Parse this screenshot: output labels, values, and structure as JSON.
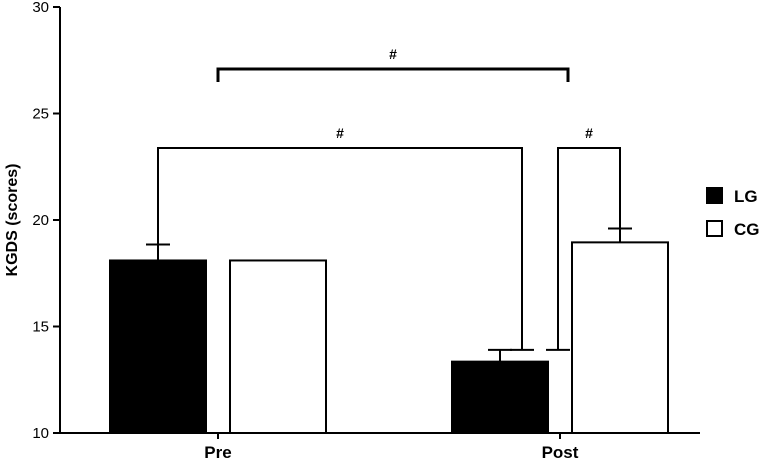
{
  "chart_data": {
    "type": "bar",
    "ylabel": "KGDS (scores)",
    "xlabel": "",
    "ylim": [
      10,
      30
    ],
    "yticks": [
      10,
      15,
      20,
      25,
      30
    ],
    "categories": [
      "Pre",
      "Post"
    ],
    "series": [
      {
        "name": "LG",
        "values": [
          18.1,
          13.35
        ],
        "errors": [
          0.75,
          0.55
        ],
        "color": "#000000"
      },
      {
        "name": "CG",
        "values": [
          18.1,
          18.95
        ],
        "errors": [
          0,
          0.65
        ],
        "color": "#ffffff"
      }
    ],
    "legend_position": "right",
    "grid": false,
    "annotations": [
      {
        "label": "#",
        "from": "LG Pre",
        "to": "LG Post"
      },
      {
        "label": "#",
        "from": "LG Post",
        "to": "CG Post"
      },
      {
        "label": "#",
        "from": "Pre",
        "to": "Post"
      }
    ]
  }
}
